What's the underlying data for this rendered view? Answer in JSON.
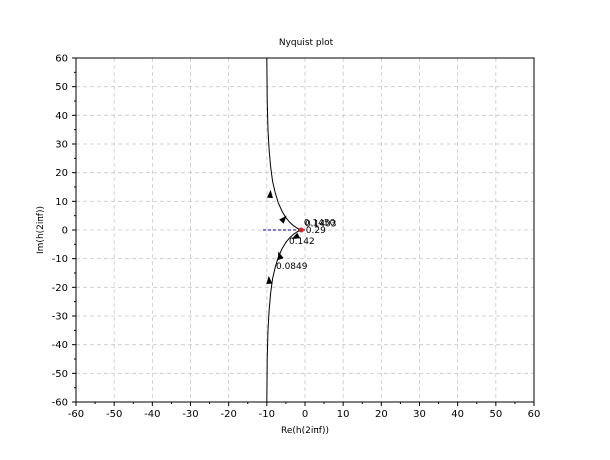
{
  "chart_data": {
    "type": "line",
    "title": "Nyquist plot",
    "xlabel": "Re(h(2iπf))",
    "ylabel": "Im(h(2iπf))",
    "xlim": [
      -60,
      60
    ],
    "ylim": [
      -60,
      60
    ],
    "x_ticks": [
      -60,
      -50,
      -40,
      -30,
      -20,
      -10,
      0,
      10,
      20,
      30,
      40,
      50,
      60
    ],
    "y_ticks": [
      -60,
      -50,
      -40,
      -30,
      -20,
      -10,
      0,
      10,
      20,
      30,
      40,
      50,
      60
    ],
    "grid": true,
    "colors": {
      "curve": "#000000",
      "critical_point": "#d62728",
      "reference_line": "#00008b",
      "grid": "#c8c8c8"
    },
    "series": [
      {
        "points": [
          [
            -10.0,
            60.0
          ],
          [
            -9.9,
            45.0
          ],
          [
            -9.7,
            35.0
          ],
          [
            -9.4,
            28.0
          ],
          [
            -9.0,
            22.0
          ],
          [
            -8.5,
            17.0
          ],
          [
            -7.8,
            13.0
          ],
          [
            -7.0,
            9.5
          ],
          [
            -6.0,
            6.5
          ],
          [
            -5.0,
            4.3
          ],
          [
            -4.0,
            2.7
          ],
          [
            -3.0,
            1.5
          ],
          [
            -2.0,
            0.6
          ],
          [
            -1.2,
            0.1
          ],
          [
            0.0,
            0.0
          ]
        ]
      },
      {
        "points": [
          [
            -10.0,
            -60.0
          ],
          [
            -9.9,
            -45.0
          ],
          [
            -9.7,
            -35.0
          ],
          [
            -9.4,
            -28.0
          ],
          [
            -9.0,
            -22.0
          ],
          [
            -8.5,
            -17.0
          ],
          [
            -7.8,
            -13.0
          ],
          [
            -7.0,
            -9.5
          ],
          [
            -6.0,
            -6.5
          ],
          [
            -5.0,
            -4.3
          ],
          [
            -4.0,
            -2.7
          ],
          [
            -3.0,
            -1.5
          ],
          [
            -2.0,
            -0.6
          ],
          [
            -1.2,
            -0.1
          ],
          [
            0.0,
            0.0
          ]
        ]
      }
    ],
    "arrows": [
      {
        "from": [
          -9.2,
          11.0
        ],
        "to": [
          -9.0,
          14.0
        ]
      },
      {
        "from": [
          -5.8,
          3.5
        ],
        "to": [
          -4.8,
          5.0
        ]
      },
      {
        "from": [
          -2.5,
          -2.5
        ],
        "to": [
          -3.5,
          -3.2
        ]
      },
      {
        "from": [
          -6.5,
          -9.5
        ],
        "to": [
          -7.0,
          -7.5
        ]
      },
      {
        "from": [
          -9.4,
          -18.0
        ],
        "to": [
          -9.5,
          -16.0
        ]
      }
    ],
    "critical_point": [
      -1,
      0
    ],
    "reference_line": {
      "x": [
        -11,
        0
      ],
      "y": [
        0,
        0
      ]
    },
    "frequency_labels": [
      {
        "text": "0.1403",
        "x": 0.0,
        "y": 1.2
      },
      {
        "text": "0.1450",
        "x": -0.3,
        "y": 1.5
      },
      {
        "text": "0.29",
        "x": 0.2,
        "y": -1.0
      },
      {
        "text": "0.142",
        "x": -4.2,
        "y": -4.8
      },
      {
        "text": "0.0849",
        "x": -7.6,
        "y": -13.6
      }
    ]
  }
}
